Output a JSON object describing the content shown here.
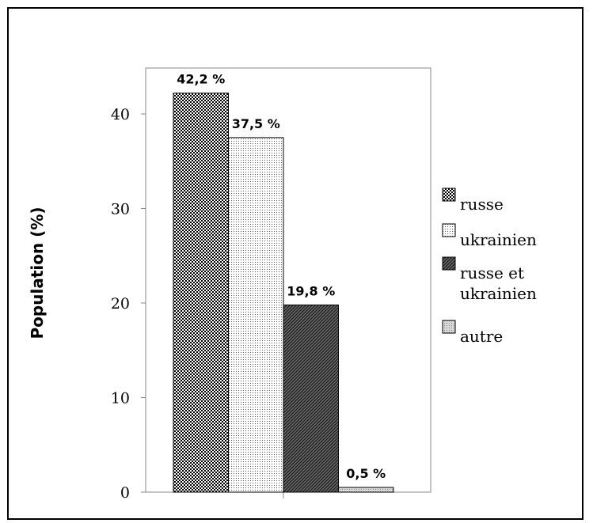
{
  "chart_data": {
    "type": "bar",
    "title": "",
    "xlabel": "",
    "ylabel": "Population (%)",
    "ylim": [
      0,
      45
    ],
    "yticks": [
      0,
      10,
      20,
      30,
      40
    ],
    "grid": false,
    "legend_position": "right",
    "categories": [
      "russe",
      "ukrainien",
      "russe et ukrainien",
      "autre"
    ],
    "values": [
      42.2,
      37.5,
      19.8,
      0.5
    ],
    "value_labels": [
      "42,2 %",
      "37,5 %",
      "19,8 %",
      "0,5 %"
    ],
    "legend": [
      {
        "lines": [
          "russe"
        ],
        "pattern": "checker"
      },
      {
        "lines": [
          "ukrainien"
        ],
        "pattern": "dots"
      },
      {
        "lines": [
          "russe et",
          "ukrainien"
        ],
        "pattern": "diagonal"
      },
      {
        "lines": [
          "autre"
        ],
        "pattern": "fine"
      }
    ]
  }
}
